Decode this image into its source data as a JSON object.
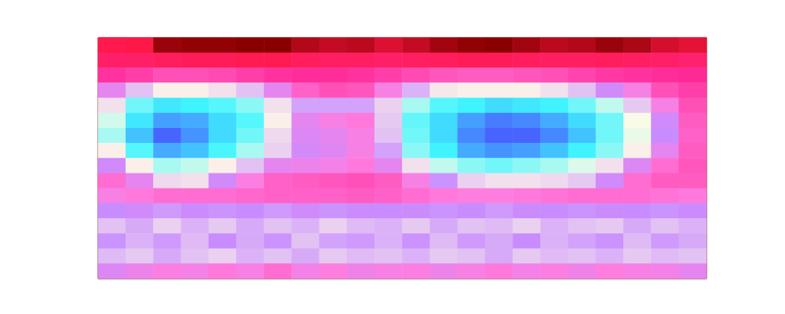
{
  "chart_data": {
    "type": "heatmap",
    "tick_labels": false,
    "clim": [
      0,
      10
    ],
    "cells": [
      [
        8.5,
        8.6,
        9.8,
        9.9,
        9.9,
        10,
        10,
        9.5,
        9.3,
        9.4,
        9,
        9.3,
        9.7,
        9.9,
        10,
        9.7,
        9.4,
        9.5,
        9.8,
        9.6,
        9.1,
        8.9
      ],
      [
        8,
        8,
        8.2,
        8.3,
        8.3,
        8.4,
        8.4,
        8.2,
        8.1,
        8.1,
        8,
        8.1,
        8.2,
        8.3,
        8.3,
        8.2,
        8.1,
        8.1,
        8.2,
        8.1,
        8,
        7.9
      ],
      [
        7,
        6.8,
        6.5,
        6.5,
        6.6,
        6.8,
        7,
        7.1,
        7.1,
        7,
        6.8,
        6.6,
        6.4,
        6.3,
        6.3,
        6.4,
        6.5,
        6.7,
        6.9,
        7,
        7.1,
        7.2
      ],
      [
        5,
        3.6,
        3,
        3,
        3.2,
        3.6,
        5,
        6.2,
        6.5,
        6.4,
        5.5,
        3.8,
        3.1,
        3,
        3,
        3,
        3.2,
        3.6,
        4.5,
        5.5,
        6.5,
        6.8
      ],
      [
        3.2,
        1.8,
        1.3,
        1.4,
        1.6,
        2,
        3.2,
        4,
        4,
        4,
        3.4,
        2.2,
        1.6,
        1.4,
        1.2,
        1.3,
        1.4,
        1.8,
        2.4,
        3.5,
        5.5,
        6.5
      ],
      [
        2.5,
        1.3,
        0.7,
        0.8,
        1.2,
        1.6,
        3,
        5,
        5.5,
        5.8,
        3.5,
        1.7,
        1.2,
        0.7,
        0.4,
        0.5,
        0.8,
        1.2,
        1.8,
        2.8,
        4.5,
        6.3
      ],
      [
        2.2,
        1,
        0.2,
        0.6,
        1.2,
        1.8,
        3.3,
        4.8,
        5,
        5.5,
        3.6,
        1.8,
        1.2,
        0.5,
        0.2,
        0.2,
        0.5,
        1,
        1.8,
        2.7,
        4.3,
        6.2
      ],
      [
        3,
        1.6,
        0.8,
        1,
        1.5,
        2.2,
        3.4,
        4.6,
        4.9,
        5.5,
        4,
        2,
        1.4,
        0.8,
        0.6,
        0.7,
        1,
        1.4,
        2,
        3,
        5,
        6.3
      ],
      [
        4.5,
        3,
        2.2,
        2.4,
        3,
        3.6,
        5,
        5.2,
        5.4,
        5.8,
        5,
        3.2,
        2.4,
        2,
        1.8,
        2,
        2.2,
        2.6,
        3.2,
        4.8,
        6,
        6.4
      ],
      [
        6,
        5,
        3.3,
        3.2,
        4.5,
        5.6,
        6.2,
        6.3,
        6.4,
        6.5,
        6.3,
        5.5,
        4.2,
        3.4,
        3.2,
        3.2,
        3.3,
        3.5,
        4.5,
        6,
        6.3,
        6.3
      ],
      [
        5.5,
        5.8,
        6,
        6,
        6,
        6.1,
        6.2,
        6.2,
        6.2,
        6.3,
        6.2,
        6,
        5.8,
        5.7,
        5.7,
        5.8,
        5.9,
        6,
        6,
        6,
        5.9,
        5.8
      ],
      [
        4.3,
        4.5,
        4.1,
        4.4,
        4.2,
        4.3,
        4.1,
        4.5,
        4.2,
        4.4,
        4.3,
        4.4,
        4.2,
        4.3,
        4.1,
        4.4,
        4.3,
        4.2,
        4.4,
        4.3,
        4.2,
        4.4
      ],
      [
        3.6,
        3.9,
        3.4,
        3.8,
        3.5,
        3.9,
        3.6,
        3.8,
        3.4,
        3.7,
        3.8,
        3.5,
        3.9,
        3.6,
        3.7,
        3.4,
        3.8,
        3.6,
        3.5,
        3.9,
        3.6,
        3.8
      ],
      [
        4.2,
        3.8,
        4.1,
        3.7,
        4.3,
        3.9,
        4.2,
        3.6,
        4,
        4.1,
        3.8,
        4.2,
        3.7,
        4.1,
        3.9,
        4.3,
        3.8,
        4,
        4.2,
        3.7,
        4.1,
        3.9
      ],
      [
        3.7,
        3.5,
        3.9,
        3.6,
        3.4,
        3.8,
        3.6,
        3.9,
        3.5,
        3.7,
        3.6,
        3.8,
        3.5,
        3.6,
        3.9,
        3.5,
        3.7,
        3.6,
        3.8,
        3.5,
        3.7,
        3.6
      ],
      [
        4.8,
        5.2,
        5.6,
        5.4,
        5.8,
        5.5,
        6,
        5.4,
        5.7,
        5.3,
        5.5,
        5.6,
        5.2,
        5.5,
        5.8,
        5.4,
        5.6,
        5.3,
        5.7,
        5.5,
        5.4,
        5
      ]
    ]
  }
}
